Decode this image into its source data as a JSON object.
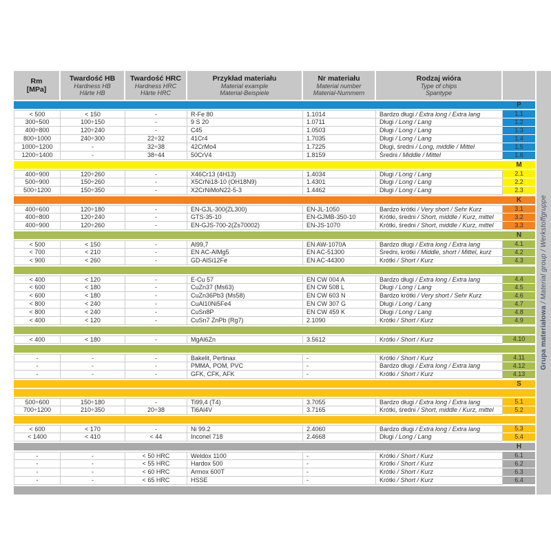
{
  "header": {
    "columns": [
      {
        "bold": "Rm",
        "bold2": "[MPa]"
      },
      {
        "bold": "Twardość HB",
        "it1": "Hardness HB",
        "it2": "Härte HB"
      },
      {
        "bold": "Twardość HRC",
        "it1": "Hardness HRC",
        "it2": "Härte HRC"
      },
      {
        "bold": "Przykład materiału",
        "it1": "Material example",
        "it2": "Material-Beispiele"
      },
      {
        "bold": "Nr materiału",
        "it1": "Material number",
        "it2": "Material-Nummern"
      },
      {
        "bold": "Rodzaj wióra",
        "it1": "Type of chips",
        "it2": "Spantype"
      }
    ]
  },
  "side_label": {
    "bold": "Grupa materiałowa",
    "italic": " / Material group / Werkstoffgruppe"
  },
  "colors": {
    "header_gray": "#C7C7C7",
    "group_p": "#1B8CD0",
    "group_m": "#FFF200",
    "group_k": "#F5821F",
    "group_n": "#A9BD50",
    "group_s": "#FFC20E",
    "group_h": "#A9A9A9",
    "footer_gray": "#ACACAC",
    "row_border": "#CBCBCB",
    "side_text": "#44546A"
  },
  "groups": [
    {
      "letter": "P",
      "color": "#1B8CD0",
      "sections": [
        {
          "rows": [
            {
              "id": "1.1",
              "rm": "< 500",
              "hb": "< 150",
              "hrc": "-",
              "material": "R-Fe 80",
              "number": "1.1014",
              "chips_pl": "Bardzo długi",
              "chips_intl": " / Extra long / Extra lang"
            },
            {
              "id": "1.2",
              "rm": "300÷500",
              "hb": "100÷150",
              "hrc": "-",
              "material": "9 S 20",
              "number": "1.0711",
              "chips_pl": "Długi",
              "chips_intl": " / Long / Lang"
            },
            {
              "id": "1.3",
              "rm": "400÷800",
              "hb": "120÷240",
              "hrc": "-",
              "material": "C45",
              "number": "1.0503",
              "chips_pl": "Długi",
              "chips_intl": " / Long / Lang"
            },
            {
              "id": "1.4",
              "rm": "800÷1000",
              "hb": "240÷300",
              "hrc": "22÷32",
              "material": "41Cr4",
              "number": "1.7035",
              "chips_pl": "Długi",
              "chips_intl": " / Long / Lang"
            },
            {
              "id": "1.5",
              "rm": "1000÷1200",
              "hb": "-",
              "hrc": "32÷38",
              "material": "42CrMo4",
              "number": "1.7225",
              "chips_pl": "Długi, średni",
              "chips_intl": " / Long, middle / Mittel"
            },
            {
              "id": "1.6",
              "rm": "1200÷1400",
              "hb": "-",
              "hrc": "38÷44",
              "material": "50CrV4",
              "number": "1.8159",
              "chips_pl": "Średni",
              "chips_intl": " / Middle / Mittel"
            }
          ]
        }
      ]
    },
    {
      "letter": "M",
      "color": "#FFF200",
      "sections": [
        {
          "rows": [
            {
              "id": "2.1",
              "rm": "400÷900",
              "hb": "120÷260",
              "hrc": "-",
              "material": "X46Cr13 (4H13)",
              "number": "1.4034",
              "chips_pl": "Długi",
              "chips_intl": " / Long / Lang"
            },
            {
              "id": "2.2",
              "rm": "500÷900",
              "hb": "150÷260",
              "hrc": "-",
              "material": "X5CrNi18-10 (OH18N9)",
              "number": "1.4301",
              "chips_pl": "Długi",
              "chips_intl": " / Long / Lang"
            },
            {
              "id": "2.3",
              "rm": "500÷1200",
              "hb": "150÷350",
              "hrc": "-",
              "material": "X2CrNiMoN22-5-3",
              "number": "1.4462",
              "chips_pl": "Długi",
              "chips_intl": " / Long / Lang"
            }
          ]
        }
      ]
    },
    {
      "letter": "K",
      "color": "#F5821F",
      "sections": [
        {
          "rows": [
            {
              "id": "3.1",
              "rm": "400÷600",
              "hb": "120÷180",
              "hrc": "-",
              "material": "EN-GJL-300(ZL300)",
              "number": "EN-JL-1050",
              "chips_pl": "Bardzo krótki",
              "chips_intl": " / Very short / Sehr Kurz"
            },
            {
              "id": "3.2",
              "rm": "400÷800",
              "hb": "120÷240",
              "hrc": "-",
              "material": "GTS-35-10",
              "number": "EN-GJMB-350-10",
              "chips_pl": "Krótki, średni",
              "chips_intl": " / Short, middle / Kurz, mittel"
            },
            {
              "id": "3.3",
              "rm": "400÷900",
              "hb": "120÷260",
              "hrc": "-",
              "material": "EN-GJS-700-2(Zs70002)",
              "number": "EN-JS-1070",
              "chips_pl": "Krótki, średni",
              "chips_intl": " / Short, middle / Kurz, mittel"
            }
          ]
        }
      ]
    },
    {
      "letter": "N",
      "color": "#A9BD50",
      "sections": [
        {
          "rows": [
            {
              "id": "4.1",
              "rm": "< 500",
              "hb": "< 150",
              "hrc": "-",
              "material": "Al99,7",
              "number": "EN AW-1070A",
              "chips_pl": "Bardzo długi",
              "chips_intl": " / Extra long / Extra lang"
            },
            {
              "id": "4.2",
              "rm": "< 700",
              "hb": "< 210",
              "hrc": "-",
              "material": "EN AC-AlMg5",
              "number": "EN AC-51300",
              "chips_pl": "Średni, krótki",
              "chips_intl": " / Middle, short / Mittel, kurz"
            },
            {
              "id": "4.3",
              "rm": "< 900",
              "hb": "< 260",
              "hrc": "-",
              "material": "GD-AlSi12Fe",
              "number": "EN AC-44300",
              "chips_pl": "Krótki",
              "chips_intl": " / Short / Kurz"
            }
          ]
        },
        {
          "rows": [
            {
              "id": "4.4",
              "rm": "< 400",
              "hb": "< 120",
              "hrc": "-",
              "material": "E-Cu 57",
              "number": "EN CW 004 A",
              "chips_pl": "Bardzo długi",
              "chips_intl": " / Extra long / Extra lang"
            },
            {
              "id": "4.5",
              "rm": "< 600",
              "hb": "< 180",
              "hrc": "-",
              "material": "CuZn37 (Ms63)",
              "number": "EN CW 508 L",
              "chips_pl": "Długi",
              "chips_intl": " / Long / Lang"
            },
            {
              "id": "4.6",
              "rm": "< 600",
              "hb": "< 180",
              "hrc": "-",
              "material": "CuZn36Pb3 (Ms58)",
              "number": "EN CW 603 N",
              "chips_pl": "Bardzo krótki",
              "chips_intl": " / Very short / Sehr Kurz"
            },
            {
              "id": "4.7",
              "rm": "< 800",
              "hb": "< 240",
              "hrc": "-",
              "material": "CuAl10Ni5Fe4",
              "number": "EN CW 307 G",
              "chips_pl": "Długi",
              "chips_intl": " / Long / Lang"
            },
            {
              "id": "4.8",
              "rm": "< 800",
              "hb": "< 240",
              "hrc": "-",
              "material": "CuSn8P",
              "number": "EN CW 459 K",
              "chips_pl": "Długi",
              "chips_intl": " / Long / Lang"
            },
            {
              "id": "4.9",
              "rm": "< 400",
              "hb": "< 120",
              "hrc": "-",
              "material": "CuSn7 ZnPb (Rg7)",
              "number": "2.1090",
              "chips_pl": "Krótki",
              "chips_intl": " / Short / Kurz"
            }
          ]
        },
        {
          "rows": [
            {
              "id": "4.10",
              "rm": "< 400",
              "hb": "< 180",
              "hrc": "-",
              "material": "MgAl6Zn",
              "number": "3.5612",
              "chips_pl": "Krótki",
              "chips_intl": " / Short / Kurz"
            }
          ]
        },
        {
          "rows": [
            {
              "id": "4.11",
              "rm": "-",
              "hb": "-",
              "hrc": "-",
              "material": "Bakelit, Pertinax",
              "number": "-",
              "chips_pl": "Krótki",
              "chips_intl": " / Short / Kurz"
            },
            {
              "id": "4.12",
              "rm": "-",
              "hb": "-",
              "hrc": "-",
              "material": "PMMA, POM, PVC",
              "number": "-",
              "chips_pl": "Bardzo długi",
              "chips_intl": " / Extra long / Extra lang"
            },
            {
              "id": "4.13",
              "rm": "-",
              "hb": "-",
              "hrc": "-",
              "material": "GFK, CFK, AFK",
              "number": "-",
              "chips_pl": "Krótki",
              "chips_intl": " / Short / Kurz"
            }
          ]
        }
      ]
    },
    {
      "letter": "S",
      "color": "#FFC20E",
      "pre_divider": true,
      "sections": [
        {
          "rows": [
            {
              "id": "5.1",
              "rm": "500÷600",
              "hb": "150÷180",
              "hrc": "-",
              "material": "Ti99,4 (T4)",
              "number": "3.7055",
              "chips_pl": "Bardzo długi",
              "chips_intl": " / Extra long / Extra lang"
            },
            {
              "id": "5.2",
              "rm": "700÷1200",
              "hb": "210÷350",
              "hrc": "20÷38",
              "material": "Ti6Al4V",
              "number": "3.7165",
              "chips_pl": "Krótki, średni",
              "chips_intl": " / Short, middle / Kurz, mittel"
            }
          ]
        },
        {
          "rows": [
            {
              "id": "5.3",
              "rm": "< 600",
              "hb": "< 170",
              "hrc": "-",
              "material": "Ni 99.2",
              "number": "2.4060",
              "chips_pl": "Bardzo długi",
              "chips_intl": " / Extra long / Extra lang"
            },
            {
              "id": "5.4",
              "rm": "< 1400",
              "hb": "< 410",
              "hrc": "< 44",
              "material": "Inconel 718",
              "number": "2.4668",
              "chips_pl": "Długi",
              "chips_intl": " / Long / Lang"
            }
          ]
        }
      ]
    },
    {
      "letter": "H",
      "color": "#A9A9A9",
      "sections": [
        {
          "rows": [
            {
              "id": "6.1",
              "rm": "-",
              "hb": "-",
              "hrc": "< 50 HRC",
              "material": "Weldox 1100",
              "number": "-",
              "chips_pl": "Krótki",
              "chips_intl": " / Short / Kurz"
            },
            {
              "id": "6.2",
              "rm": "-",
              "hb": "-",
              "hrc": "< 55 HRC",
              "material": "Hardox 500",
              "number": "-",
              "chips_pl": "Krótki",
              "chips_intl": " / Short / Kurz"
            },
            {
              "id": "6.3",
              "rm": "-",
              "hb": "-",
              "hrc": "< 60 HRC",
              "material": "Armox 600T",
              "number": "-",
              "chips_pl": "Krótki",
              "chips_intl": " / Short / Kurz"
            },
            {
              "id": "6.4",
              "rm": "-",
              "hb": "-",
              "hrc": "< 65 HRC",
              "material": "HSSE",
              "number": "-",
              "chips_pl": "Krótki",
              "chips_intl": " / Short / Kurz"
            }
          ]
        }
      ]
    }
  ]
}
